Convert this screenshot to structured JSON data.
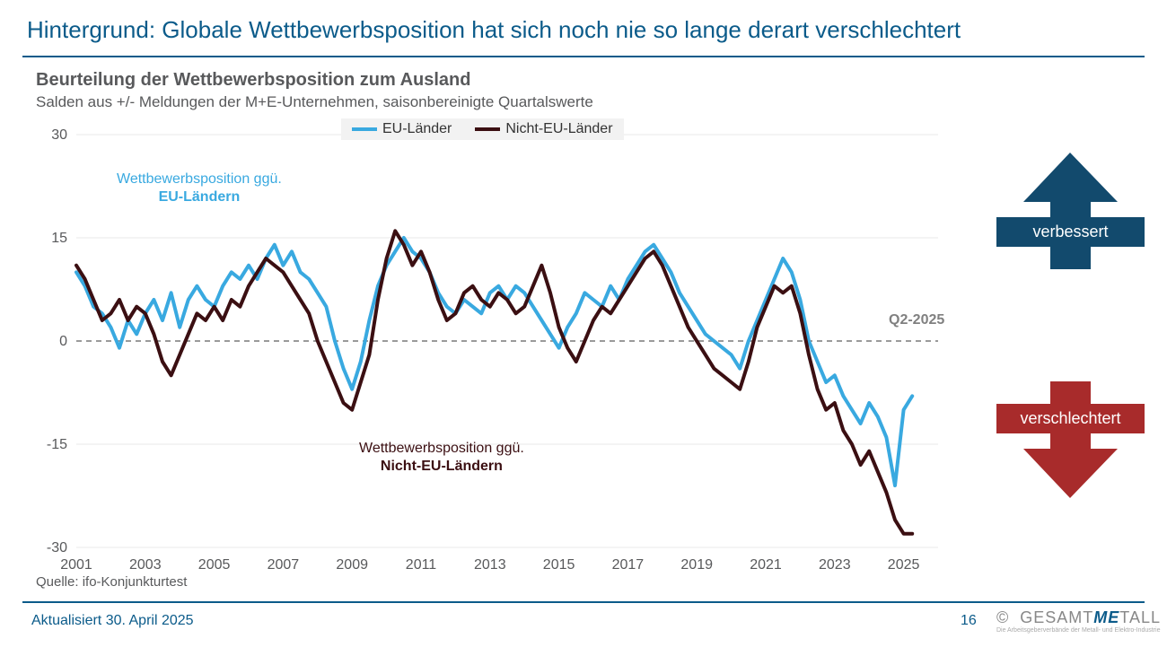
{
  "page": {
    "title": "Hintergrund: Globale Wettbewerbsposition hat sich noch nie so lange derart verschlechtert",
    "chart_title": "Beurteilung der Wettbewerbsposition zum Ausland",
    "chart_subtitle": "Salden aus +/- Meldungen der M+E-Unternehmen, saisonbereinigte Quartalswerte",
    "source": "Quelle: ifo-Konjunkturtest",
    "footer_left": "Aktualisiert 30. April 2025",
    "footer_page": "16",
    "footer_copy": "©",
    "footer_brand_a": "GESAMT",
    "footer_brand_b": "ME",
    "footer_brand_c": "TALL",
    "footer_brand_sub": "Die Arbeitsgeberverbände der Metall- und Elektro-Industrie"
  },
  "legend": {
    "a": "EU-Länder",
    "b": "Nicht-EU-Länder"
  },
  "annotations": {
    "eu_l1": "Wettbewerbsposition ggü.",
    "eu_l2": "EU-Ländern",
    "neu_l1": "Wettbewerbsposition ggü.",
    "neu_l2": "Nicht-EU-Ländern",
    "q_label": "Q2-2025",
    "improved": "verbessert",
    "worsened": "verschlechtert"
  },
  "chart": {
    "type": "line",
    "background_color": "#ffffff",
    "grid_color": "#e8e8e8",
    "zero_line_color": "#9a9a9a",
    "zero_line_dash": "6,5",
    "x_start": 2001,
    "x_end": 2026,
    "x_ticks": [
      2001,
      2003,
      2005,
      2007,
      2009,
      2011,
      2013,
      2015,
      2017,
      2019,
      2021,
      2023,
      2025
    ],
    "y_min": -30,
    "y_max": 30,
    "y_ticks": [
      -30,
      -15,
      0,
      15,
      30
    ],
    "series": [
      {
        "name": "EU-Länder",
        "color": "#39a9e0",
        "width": 4,
        "points": [
          [
            2001.0,
            10
          ],
          [
            2001.25,
            8
          ],
          [
            2001.5,
            5
          ],
          [
            2001.75,
            4
          ],
          [
            2002.0,
            2
          ],
          [
            2002.25,
            -1
          ],
          [
            2002.5,
            3
          ],
          [
            2002.75,
            1
          ],
          [
            2003.0,
            4
          ],
          [
            2003.25,
            6
          ],
          [
            2003.5,
            3
          ],
          [
            2003.75,
            7
          ],
          [
            2004.0,
            2
          ],
          [
            2004.25,
            6
          ],
          [
            2004.5,
            8
          ],
          [
            2004.75,
            6
          ],
          [
            2005.0,
            5
          ],
          [
            2005.25,
            8
          ],
          [
            2005.5,
            10
          ],
          [
            2005.75,
            9
          ],
          [
            2006.0,
            11
          ],
          [
            2006.25,
            9
          ],
          [
            2006.5,
            12
          ],
          [
            2006.75,
            14
          ],
          [
            2007.0,
            11
          ],
          [
            2007.25,
            13
          ],
          [
            2007.5,
            10
          ],
          [
            2007.75,
            9
          ],
          [
            2008.0,
            7
          ],
          [
            2008.25,
            5
          ],
          [
            2008.5,
            0
          ],
          [
            2008.75,
            -4
          ],
          [
            2009.0,
            -7
          ],
          [
            2009.25,
            -3
          ],
          [
            2009.5,
            3
          ],
          [
            2009.75,
            8
          ],
          [
            2010.0,
            11
          ],
          [
            2010.25,
            13
          ],
          [
            2010.5,
            15
          ],
          [
            2010.75,
            13
          ],
          [
            2011.0,
            12
          ],
          [
            2011.25,
            10
          ],
          [
            2011.5,
            7
          ],
          [
            2011.75,
            5
          ],
          [
            2012.0,
            4
          ],
          [
            2012.25,
            6
          ],
          [
            2012.5,
            5
          ],
          [
            2012.75,
            4
          ],
          [
            2013.0,
            7
          ],
          [
            2013.25,
            8
          ],
          [
            2013.5,
            6
          ],
          [
            2013.75,
            8
          ],
          [
            2014.0,
            7
          ],
          [
            2014.25,
            5
          ],
          [
            2014.5,
            3
          ],
          [
            2014.75,
            1
          ],
          [
            2015.0,
            -1
          ],
          [
            2015.25,
            2
          ],
          [
            2015.5,
            4
          ],
          [
            2015.75,
            7
          ],
          [
            2016.0,
            6
          ],
          [
            2016.25,
            5
          ],
          [
            2016.5,
            8
          ],
          [
            2016.75,
            6
          ],
          [
            2017.0,
            9
          ],
          [
            2017.25,
            11
          ],
          [
            2017.5,
            13
          ],
          [
            2017.75,
            14
          ],
          [
            2018.0,
            12
          ],
          [
            2018.25,
            10
          ],
          [
            2018.5,
            7
          ],
          [
            2018.75,
            5
          ],
          [
            2019.0,
            3
          ],
          [
            2019.25,
            1
          ],
          [
            2019.5,
            0
          ],
          [
            2019.75,
            -1
          ],
          [
            2020.0,
            -2
          ],
          [
            2020.25,
            -4
          ],
          [
            2020.5,
            0
          ],
          [
            2020.75,
            3
          ],
          [
            2021.0,
            6
          ],
          [
            2021.25,
            9
          ],
          [
            2021.5,
            12
          ],
          [
            2021.75,
            10
          ],
          [
            2022.0,
            6
          ],
          [
            2022.25,
            0
          ],
          [
            2022.5,
            -3
          ],
          [
            2022.75,
            -6
          ],
          [
            2023.0,
            -5
          ],
          [
            2023.25,
            -8
          ],
          [
            2023.5,
            -10
          ],
          [
            2023.75,
            -12
          ],
          [
            2024.0,
            -9
          ],
          [
            2024.25,
            -11
          ],
          [
            2024.5,
            -14
          ],
          [
            2024.75,
            -21
          ],
          [
            2025.0,
            -10
          ],
          [
            2025.25,
            -8
          ]
        ]
      },
      {
        "name": "Nicht-EU-Länder",
        "color": "#3b0f12",
        "width": 4,
        "points": [
          [
            2001.0,
            11
          ],
          [
            2001.25,
            9
          ],
          [
            2001.5,
            6
          ],
          [
            2001.75,
            3
          ],
          [
            2002.0,
            4
          ],
          [
            2002.25,
            6
          ],
          [
            2002.5,
            3
          ],
          [
            2002.75,
            5
          ],
          [
            2003.0,
            4
          ],
          [
            2003.25,
            1
          ],
          [
            2003.5,
            -3
          ],
          [
            2003.75,
            -5
          ],
          [
            2004.0,
            -2
          ],
          [
            2004.25,
            1
          ],
          [
            2004.5,
            4
          ],
          [
            2004.75,
            3
          ],
          [
            2005.0,
            5
          ],
          [
            2005.25,
            3
          ],
          [
            2005.5,
            6
          ],
          [
            2005.75,
            5
          ],
          [
            2006.0,
            8
          ],
          [
            2006.25,
            10
          ],
          [
            2006.5,
            12
          ],
          [
            2006.75,
            11
          ],
          [
            2007.0,
            10
          ],
          [
            2007.25,
            8
          ],
          [
            2007.5,
            6
          ],
          [
            2007.75,
            4
          ],
          [
            2008.0,
            0
          ],
          [
            2008.25,
            -3
          ],
          [
            2008.5,
            -6
          ],
          [
            2008.75,
            -9
          ],
          [
            2009.0,
            -10
          ],
          [
            2009.25,
            -6
          ],
          [
            2009.5,
            -2
          ],
          [
            2009.75,
            6
          ],
          [
            2010.0,
            12
          ],
          [
            2010.25,
            16
          ],
          [
            2010.5,
            14
          ],
          [
            2010.75,
            11
          ],
          [
            2011.0,
            13
          ],
          [
            2011.25,
            10
          ],
          [
            2011.5,
            6
          ],
          [
            2011.75,
            3
          ],
          [
            2012.0,
            4
          ],
          [
            2012.25,
            7
          ],
          [
            2012.5,
            8
          ],
          [
            2012.75,
            6
          ],
          [
            2013.0,
            5
          ],
          [
            2013.25,
            7
          ],
          [
            2013.5,
            6
          ],
          [
            2013.75,
            4
          ],
          [
            2014.0,
            5
          ],
          [
            2014.25,
            8
          ],
          [
            2014.5,
            11
          ],
          [
            2014.75,
            7
          ],
          [
            2015.0,
            2
          ],
          [
            2015.25,
            -1
          ],
          [
            2015.5,
            -3
          ],
          [
            2015.75,
            0
          ],
          [
            2016.0,
            3
          ],
          [
            2016.25,
            5
          ],
          [
            2016.5,
            4
          ],
          [
            2016.75,
            6
          ],
          [
            2017.0,
            8
          ],
          [
            2017.25,
            10
          ],
          [
            2017.5,
            12
          ],
          [
            2017.75,
            13
          ],
          [
            2018.0,
            11
          ],
          [
            2018.25,
            8
          ],
          [
            2018.5,
            5
          ],
          [
            2018.75,
            2
          ],
          [
            2019.0,
            0
          ],
          [
            2019.25,
            -2
          ],
          [
            2019.5,
            -4
          ],
          [
            2019.75,
            -5
          ],
          [
            2020.0,
            -6
          ],
          [
            2020.25,
            -7
          ],
          [
            2020.5,
            -3
          ],
          [
            2020.75,
            2
          ],
          [
            2021.0,
            5
          ],
          [
            2021.25,
            8
          ],
          [
            2021.5,
            7
          ],
          [
            2021.75,
            8
          ],
          [
            2022.0,
            4
          ],
          [
            2022.25,
            -2
          ],
          [
            2022.5,
            -7
          ],
          [
            2022.75,
            -10
          ],
          [
            2023.0,
            -9
          ],
          [
            2023.25,
            -13
          ],
          [
            2023.5,
            -15
          ],
          [
            2023.75,
            -18
          ],
          [
            2024.0,
            -16
          ],
          [
            2024.25,
            -19
          ],
          [
            2024.5,
            -22
          ],
          [
            2024.75,
            -26
          ],
          [
            2025.0,
            -28
          ],
          [
            2025.25,
            -28
          ]
        ]
      }
    ]
  },
  "arrows": {
    "up_color": "#124a6d",
    "down_color": "#a82b2b"
  }
}
